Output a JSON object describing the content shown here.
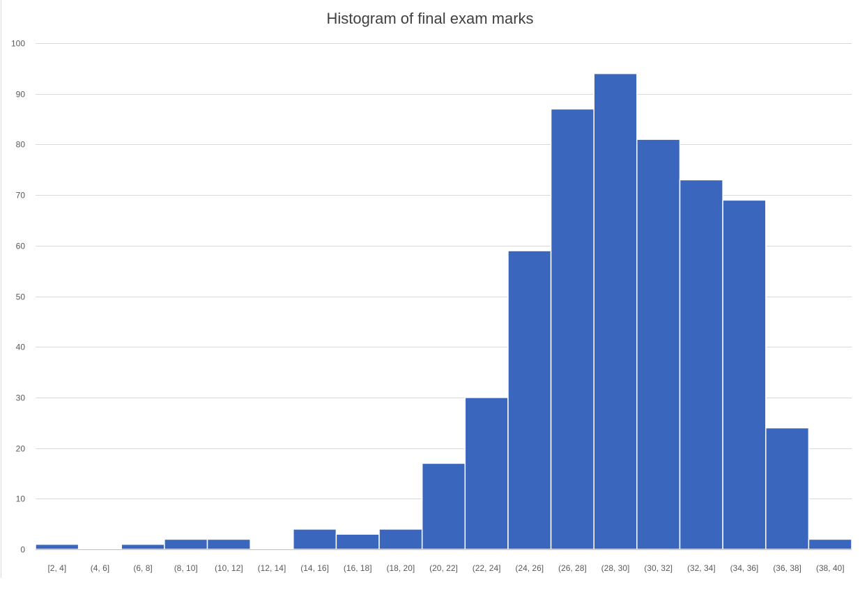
{
  "chart_data": {
    "type": "bar",
    "title": "Histogram of final exam marks",
    "xlabel": "",
    "ylabel": "",
    "categories": [
      "[2, 4]",
      "(4, 6]",
      "(6, 8]",
      "(8, 10]",
      "(10, 12]",
      "(12, 14]",
      "(14, 16]",
      "(16, 18]",
      "(18, 20]",
      "(20, 22]",
      "(22, 24]",
      "(24, 26]",
      "(26, 28]",
      "(28, 30]",
      "(30, 32]",
      "(32, 34]",
      "(34, 36]",
      "(36, 38]",
      "(38, 40]"
    ],
    "values": [
      1,
      0,
      1,
      2,
      2,
      0,
      4,
      3,
      4,
      17,
      30,
      59,
      87,
      94,
      81,
      73,
      69,
      24,
      2
    ],
    "ylim": [
      0,
      100
    ],
    "yticks": [
      0,
      10,
      20,
      30,
      40,
      50,
      60,
      70,
      80,
      90,
      100
    ],
    "grid": true,
    "legend": "none",
    "colors": {
      "bar": "#3a67bd",
      "grid": "#d9d9d9",
      "text": "#595959",
      "title": "#404040"
    }
  }
}
